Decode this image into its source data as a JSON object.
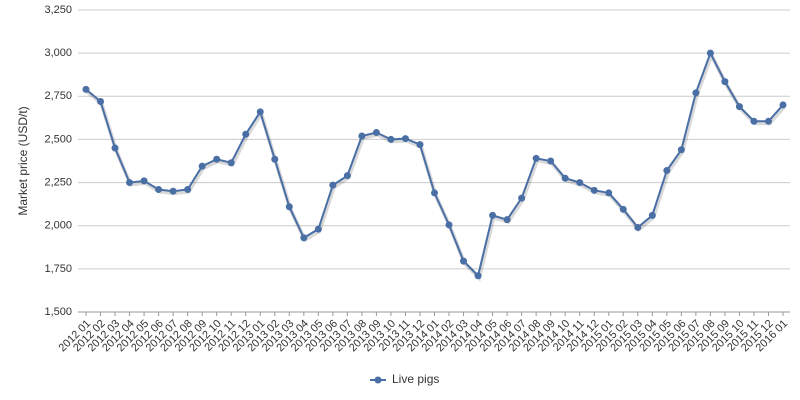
{
  "chart_data": {
    "type": "line",
    "y_label": "Market price (USD/t)",
    "categories": [
      "2012 01",
      "2012 02",
      "2012 03",
      "2012 04",
      "2012 05",
      "2012 06",
      "2012 07",
      "2012 08",
      "2012 09",
      "2012 10",
      "2012 11",
      "2012 12",
      "2013 01",
      "2013 02",
      "2013 03",
      "2013 04",
      "2013 05",
      "2013 06",
      "2013 07",
      "2013 08",
      "2013 09",
      "2013 10",
      "2013 11",
      "2013 12",
      "2014 01",
      "2014 02",
      "2014 03",
      "2014 04",
      "2014 05",
      "2014 06",
      "2014 07",
      "2014 08",
      "2014 09",
      "2014 10",
      "2014 11",
      "2014 12",
      "2015 01",
      "2015 02",
      "2015 03",
      "2015 04",
      "2015 05",
      "2015 06",
      "2015 07",
      "2015 08",
      "2015 09",
      "2015 10",
      "2015 11",
      "2015 12",
      "2016 01"
    ],
    "series": [
      {
        "name": "Live pigs",
        "color": "#4a6fa5",
        "values": [
          2790,
          2720,
          2450,
          2250,
          2260,
          2210,
          2200,
          2210,
          2345,
          2385,
          2365,
          2530,
          2660,
          2385,
          2110,
          1930,
          1980,
          2235,
          2290,
          2520,
          2540,
          2500,
          2505,
          2470,
          2190,
          2005,
          1795,
          1710,
          2060,
          2035,
          2160,
          2390,
          2375,
          2275,
          2250,
          2205,
          2190,
          2095,
          1990,
          2060,
          2320,
          2440,
          2770,
          3000,
          2835,
          2690,
          2605,
          2605,
          2700
        ]
      }
    ],
    "ylim": [
      1500,
      3250
    ],
    "yticks": [
      {
        "value": 1500,
        "label": "1,500"
      },
      {
        "value": 1750,
        "label": "1,750"
      },
      {
        "value": 2000,
        "label": "2,000"
      },
      {
        "value": 2250,
        "label": "2,250"
      },
      {
        "value": 2500,
        "label": "2,500"
      },
      {
        "value": 2750,
        "label": "2,750"
      },
      {
        "value": 3000,
        "label": "3,000"
      },
      {
        "value": 3250,
        "label": "3,250"
      }
    ],
    "grid": true,
    "legend": "bottom"
  }
}
